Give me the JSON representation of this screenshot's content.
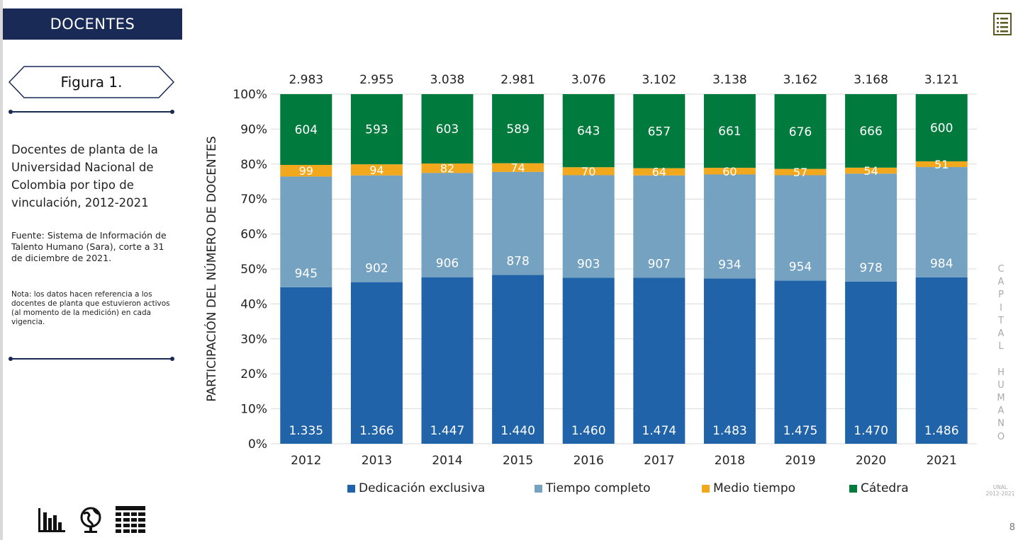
{
  "header": {
    "section_title": "DOCENTES"
  },
  "sidebar": {
    "figure_label": "Figura 1.",
    "description": "Docentes de planta de la Universidad Nacional de Colombia por tipo de vinculación, 2012-2021",
    "source": "Fuente: Sistema de Información de Talento Humano (Sara), corte a 31 de diciembre de 2021.",
    "note": "Nota: los datos hacen referencia a los docentes de planta que estuvieron activos (al momento de la medición) en cada vigencia."
  },
  "side_label": {
    "letters": [
      "C",
      "A",
      "P",
      "I",
      "T",
      "A",
      "L",
      "",
      "H",
      "U",
      "M",
      "A",
      "N",
      "O"
    ],
    "unal": "UNAL",
    "years": "2012-2021"
  },
  "page_number": "8",
  "icons": {
    "top_right": "document-list-icon",
    "bottom": [
      "bar-chart-icon",
      "globe-icon",
      "table-icon"
    ]
  },
  "colors": {
    "navy": "#1a2a57",
    "dedicacion": "#2063a8",
    "tiempo": "#76a2c1",
    "medio": "#f2a81d",
    "catedra": "#007a3d"
  },
  "chart_data": {
    "type": "bar",
    "stacked": "percent",
    "categories": [
      "2012",
      "2013",
      "2014",
      "2015",
      "2016",
      "2017",
      "2018",
      "2019",
      "2020",
      "2021"
    ],
    "series": [
      {
        "name": "Dedicación exclusiva",
        "values": [
          1335,
          1366,
          1447,
          1440,
          1460,
          1474,
          1483,
          1475,
          1470,
          1486
        ],
        "labels": [
          "1.335",
          "1.366",
          "1.447",
          "1.440",
          "1.460",
          "1.474",
          "1.483",
          "1.475",
          "1.470",
          "1.486"
        ],
        "color": "#2063a8"
      },
      {
        "name": "Tiempo completo",
        "values": [
          945,
          902,
          906,
          878,
          903,
          907,
          934,
          954,
          978,
          984
        ],
        "labels": [
          "945",
          "902",
          "906",
          "878",
          "903",
          "907",
          "934",
          "954",
          "978",
          "984"
        ],
        "color": "#76a2c1"
      },
      {
        "name": "Medio tiempo",
        "values": [
          99,
          94,
          82,
          74,
          70,
          64,
          60,
          57,
          54,
          51
        ],
        "labels": [
          "99",
          "94",
          "82",
          "74",
          "70",
          "64",
          "60",
          "57",
          "54",
          "51"
        ],
        "color": "#f2a81d"
      },
      {
        "name": "Cátedra",
        "values": [
          604,
          593,
          603,
          589,
          643,
          657,
          661,
          676,
          666,
          600
        ],
        "labels": [
          "604",
          "593",
          "603",
          "589",
          "643",
          "657",
          "661",
          "676",
          "666",
          "600"
        ],
        "color": "#007a3d"
      }
    ],
    "totals": [
      "2.983",
      "2.955",
      "3.038",
      "2.981",
      "3.076",
      "3.102",
      "3.138",
      "3.162",
      "3.168",
      "3.121"
    ],
    "ylabel": "PARTICIPACIÓN DEL NÚMERO DE DOCENTES",
    "xlabel": "",
    "ylim": [
      0,
      100
    ],
    "yticks": [
      "0%",
      "10%",
      "20%",
      "30%",
      "40%",
      "50%",
      "60%",
      "70%",
      "80%",
      "90%",
      "100%"
    ],
    "grid": true,
    "legend_position": "bottom"
  }
}
